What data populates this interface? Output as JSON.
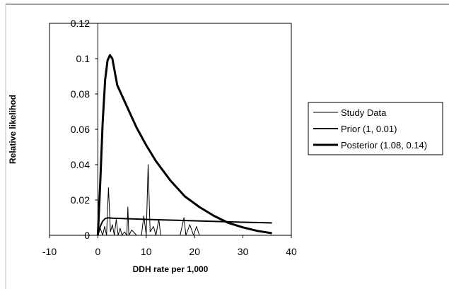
{
  "chart_data": {
    "type": "line",
    "title": "",
    "xlabel": "DDH rate per 1,000",
    "ylabel": "Relative likelihod",
    "xlim": [
      -10,
      40
    ],
    "ylim": [
      0,
      0.12
    ],
    "x_ticks": [
      -10,
      0,
      10,
      20,
      30,
      40
    ],
    "y_ticks": [
      0,
      0.02,
      0.04,
      0.06,
      0.08,
      0.1,
      0.12
    ],
    "x_tick_labels": [
      "-10",
      "0",
      "10",
      "20",
      "30",
      "40"
    ],
    "y_tick_labels": [
      "0",
      "0.02",
      "0.04",
      "0.06",
      "0.08",
      "0.1",
      "0.12"
    ],
    "grid": false,
    "legend_position": "right",
    "series": [
      {
        "name": "Study Data",
        "style": "thin",
        "color": "#000000",
        "x": [
          0,
          0.5,
          1,
          1.4,
          1.8,
          2.2,
          2.6,
          3.0,
          3.4,
          3.8,
          4.2,
          4.6,
          5.0,
          5.5,
          6.0,
          6.2,
          6.4,
          7.0,
          8.0,
          9.0,
          9.5,
          10.0,
          10.4,
          10.8,
          11.5,
          12.0,
          12.6,
          13.0,
          14.0,
          15.0,
          16.0,
          17.0,
          17.8,
          18.2,
          19.0,
          19.8,
          20.4,
          21.0
        ],
        "y": [
          0,
          0.004,
          0.0,
          0.005,
          0.0,
          0.027,
          0.002,
          0.006,
          0.0,
          0.009,
          0.0,
          0.004,
          0.0,
          0.002,
          0.0,
          0.016,
          0.0,
          0.003,
          0.0,
          0.0,
          0.011,
          0.0,
          0.04,
          0.002,
          0.005,
          0.0,
          0.009,
          0.0,
          0.0,
          0.0,
          0.0,
          0.0,
          0.01,
          0.0,
          0.006,
          0.0,
          0.005,
          0.0
        ]
      },
      {
        "name": "Prior (1, 0.01)",
        "style": "medium",
        "color": "#000000",
        "x": [
          0,
          0.5,
          1,
          1.5,
          2,
          3,
          5,
          10,
          15,
          20,
          25,
          30,
          36
        ],
        "y": [
          0,
          0.005,
          0.008,
          0.0095,
          0.0099,
          0.0097,
          0.0095,
          0.009,
          0.0086,
          0.0082,
          0.0078,
          0.0074,
          0.007
        ]
      },
      {
        "name": "Posterior (1.08, 0.14)",
        "style": "thick",
        "color": "#000000",
        "x": [
          0,
          0.5,
          1,
          1.5,
          2,
          2.5,
          3,
          4,
          5,
          6,
          8,
          10,
          12,
          15,
          18,
          21,
          24,
          27,
          30,
          33,
          36
        ],
        "y": [
          0,
          0.03,
          0.064,
          0.088,
          0.099,
          0.102,
          0.1,
          0.085,
          0.079,
          0.073,
          0.061,
          0.051,
          0.042,
          0.031,
          0.022,
          0.016,
          0.011,
          0.007,
          0.0045,
          0.0025,
          0.0012
        ]
      }
    ]
  }
}
